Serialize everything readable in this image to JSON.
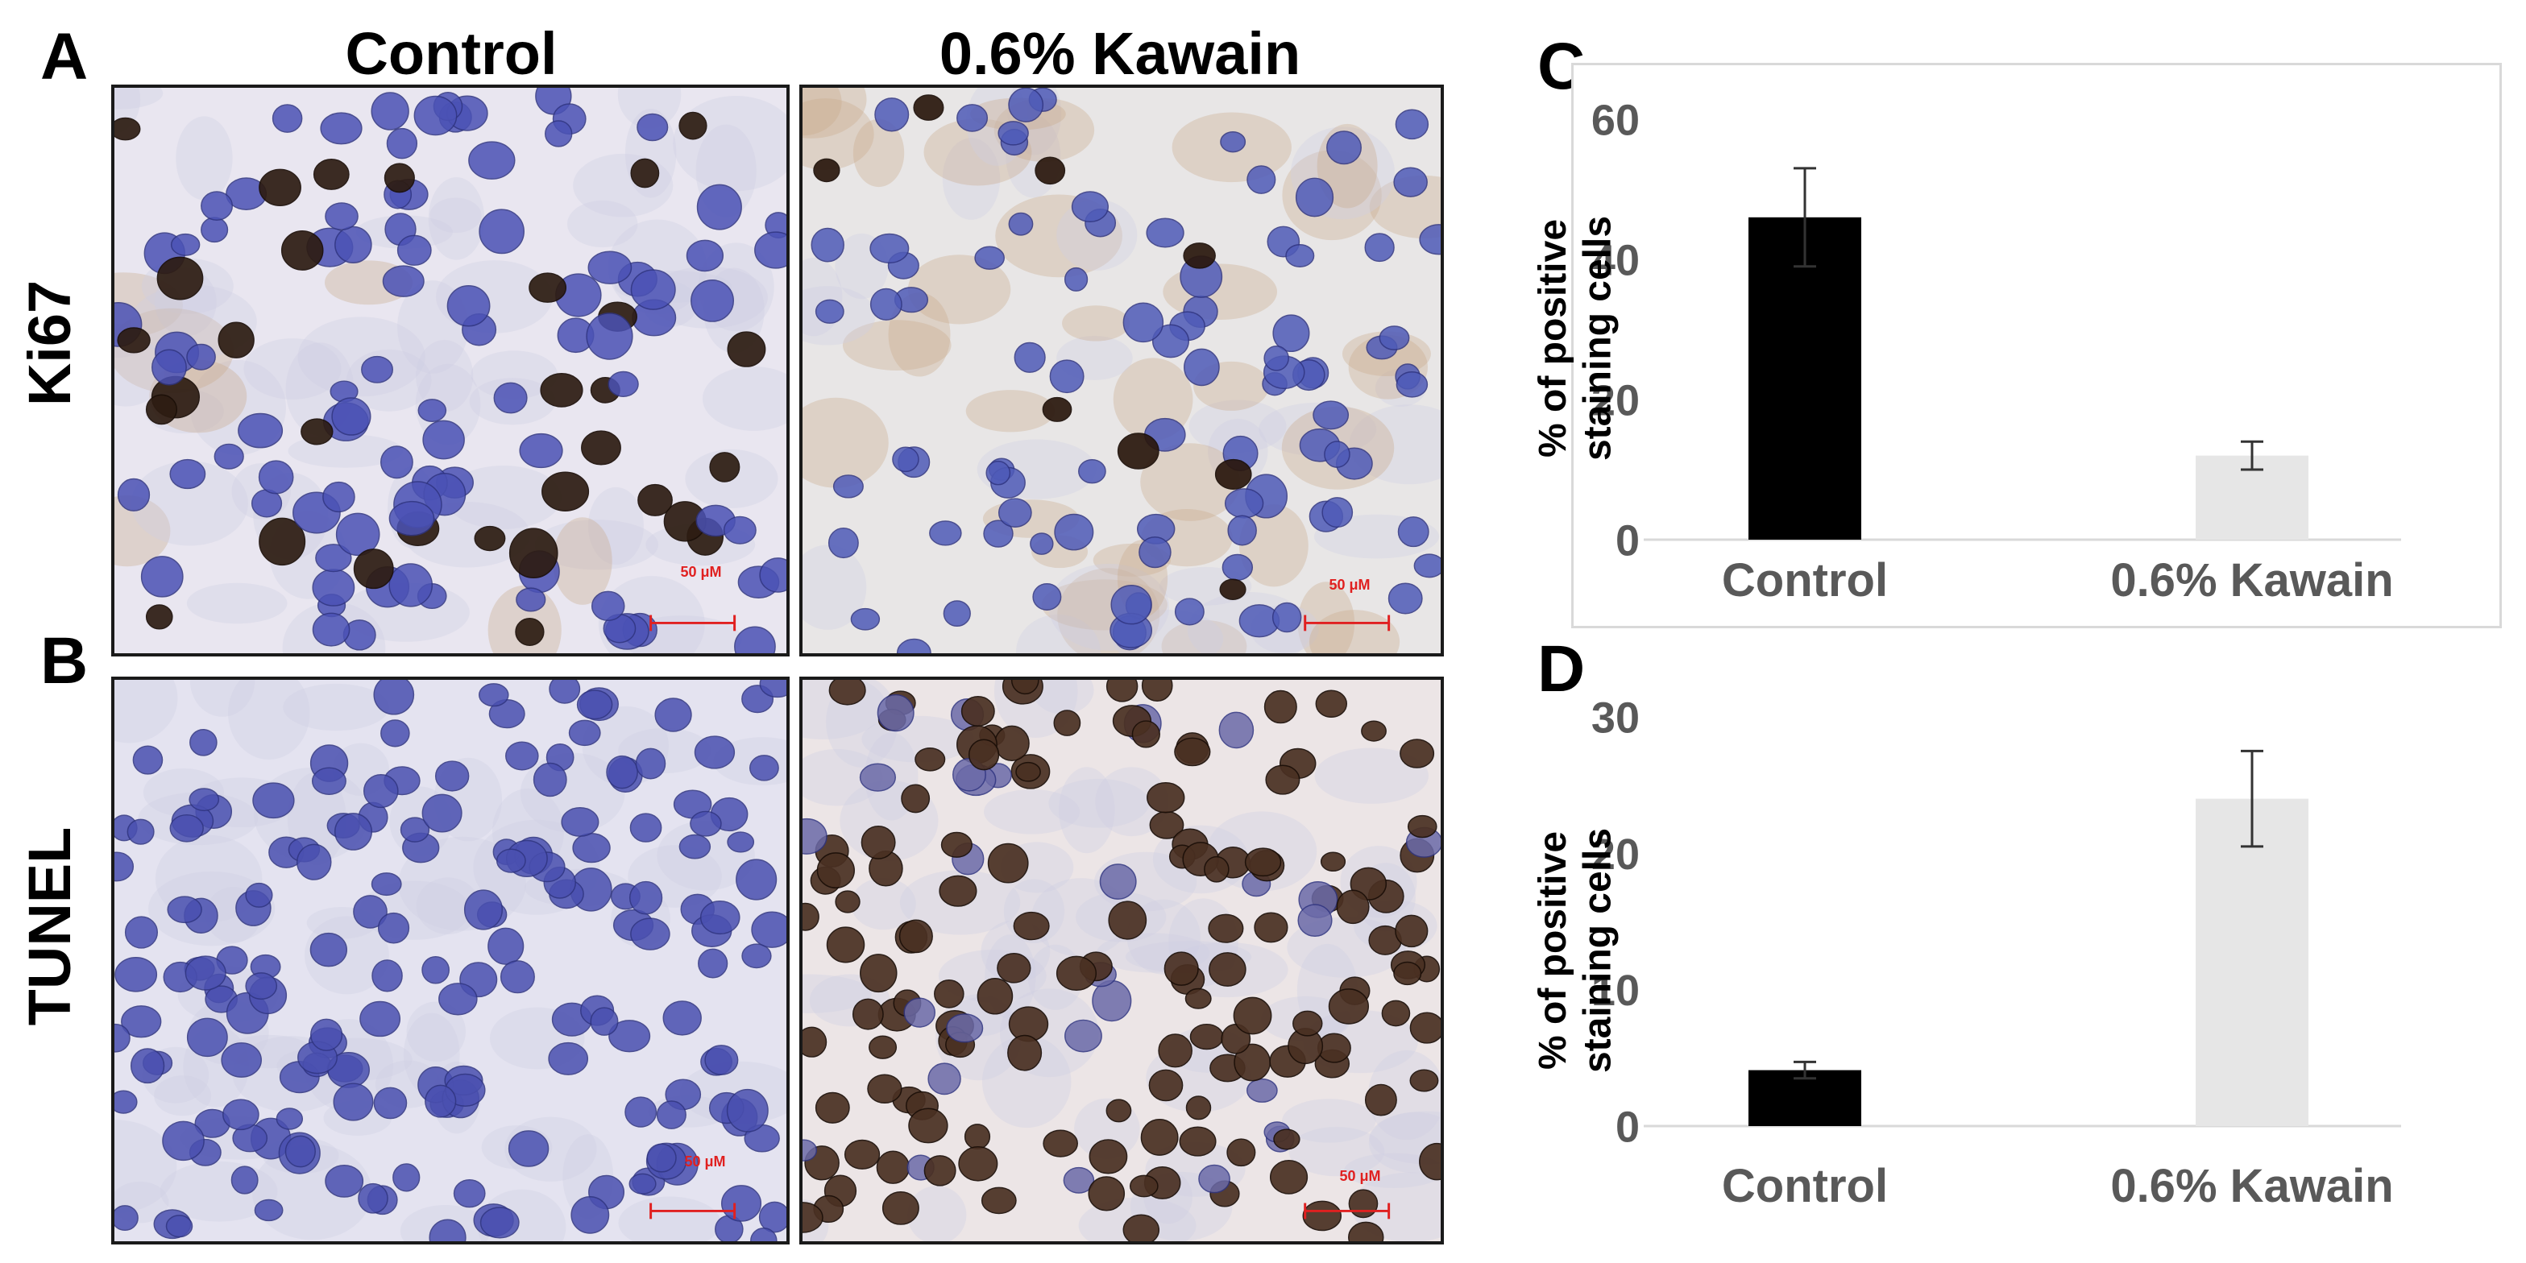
{
  "panels": {
    "a": "A",
    "b": "B",
    "c": "C",
    "d": "D"
  },
  "columns": {
    "control": "Control",
    "kawain": "0.6% Kawain"
  },
  "rows": {
    "ki67": "Ki67",
    "tunel": "TUNEL"
  },
  "scale_bars": {
    "ki67_control": "50 μM",
    "ki67_kawain": "50 μM",
    "tunel_control": "50 μM",
    "tunel_kawain": "50 μM"
  },
  "colors": {
    "control_bar": "#000000",
    "kawain_bar": "#e6e6e6",
    "hematoxylin": "#4a52b0",
    "dab": "#3a2516",
    "scale_bar": "#e02020"
  },
  "chart_data": [
    {
      "id": "C",
      "type": "bar",
      "categories": [
        "Control",
        "0.6% Kawain"
      ],
      "values": [
        46,
        12
      ],
      "error": [
        7,
        2
      ],
      "ylabel": "% of positive staining cells",
      "ylabel_lines": [
        "% of positive",
        "staining cells"
      ],
      "ylim": [
        0,
        60
      ],
      "yticks": [
        0,
        20,
        40,
        60
      ],
      "grid": false,
      "legend": false
    },
    {
      "id": "D",
      "type": "bar",
      "categories": [
        "Control",
        "0.6% Kawain"
      ],
      "values": [
        4.1,
        24
      ],
      "error": [
        0.6,
        3.5
      ],
      "ylabel": "% of positive staining cells",
      "ylabel_lines": [
        "% of positive",
        "staining cells"
      ],
      "ylim": [
        0,
        30
      ],
      "yticks": [
        0,
        10,
        20,
        30
      ],
      "grid": false,
      "legend": false
    }
  ]
}
